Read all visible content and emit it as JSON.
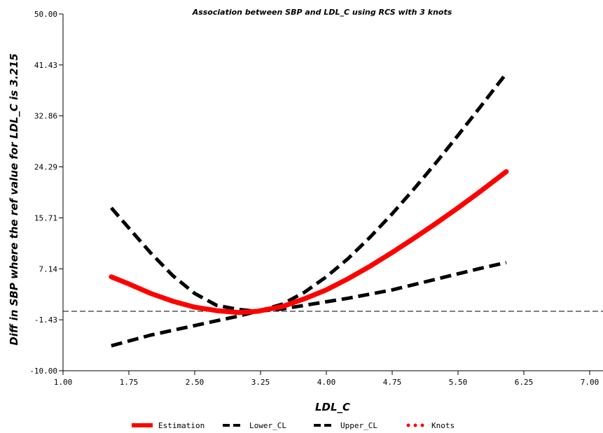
{
  "chart_data": {
    "type": "line",
    "title": "Association between SBP and LDL_C using RCS with 3 knots",
    "xlabel": "LDL_C",
    "ylabel": "Diff in SBP where the ref value for LDL_C is 3.215",
    "xlim": [
      1.0,
      7.0
    ],
    "ylim": [
      -10.0,
      50.0
    ],
    "x_ticks": [
      "1.00",
      "1.75",
      "2.50",
      "3.25",
      "4.00",
      "4.75",
      "5.50",
      "6.25",
      "7.00"
    ],
    "y_ticks": [
      "-10.00",
      "-1.43",
      "7.14",
      "15.71",
      "24.29",
      "32.86",
      "41.43",
      "50.00"
    ],
    "reference_line_y": 0,
    "legend_position": "bottom",
    "series": [
      {
        "name": "Estimation",
        "color": "#ff0000",
        "style": "solid",
        "x": [
          1.55,
          1.75,
          2.0,
          2.25,
          2.5,
          2.75,
          3.0,
          3.215,
          3.5,
          3.75,
          4.0,
          4.25,
          4.5,
          4.75,
          5.0,
          5.25,
          5.5,
          5.75,
          6.05
        ],
        "y": [
          5.8,
          4.6,
          3.0,
          1.7,
          0.7,
          0.1,
          -0.2,
          0.0,
          0.8,
          2.1,
          3.6,
          5.5,
          7.6,
          9.9,
          12.3,
          14.8,
          17.4,
          20.1,
          23.5
        ]
      },
      {
        "name": "Lower_CL",
        "color": "#000000",
        "style": "dashed",
        "x": [
          1.55,
          1.75,
          2.0,
          2.25,
          2.5,
          2.75,
          3.0,
          3.215,
          3.5,
          3.75,
          4.0,
          4.25,
          4.5,
          4.75,
          5.0,
          5.25,
          5.5,
          5.75,
          6.05
        ],
        "y": [
          -5.8,
          -5.0,
          -4.0,
          -3.2,
          -2.4,
          -1.6,
          -0.8,
          0.0,
          0.4,
          1.0,
          1.6,
          2.2,
          2.9,
          3.6,
          4.5,
          5.4,
          6.3,
          7.2,
          8.2
        ]
      },
      {
        "name": "Upper_CL",
        "color": "#000000",
        "style": "dashed",
        "x": [
          1.55,
          1.75,
          2.0,
          2.25,
          2.5,
          2.75,
          3.0,
          3.215,
          3.5,
          3.75,
          4.0,
          4.25,
          4.5,
          4.75,
          5.0,
          5.25,
          5.5,
          5.75,
          6.05
        ],
        "y": [
          17.4,
          14.0,
          9.8,
          6.0,
          3.0,
          1.0,
          0.3,
          0.0,
          1.2,
          3.2,
          5.8,
          8.9,
          12.5,
          16.4,
          20.6,
          25.0,
          29.6,
          34.3,
          40.0
        ]
      }
    ],
    "knots": {
      "name": "Knots",
      "color": "#ff0000",
      "x": [],
      "y": []
    }
  }
}
